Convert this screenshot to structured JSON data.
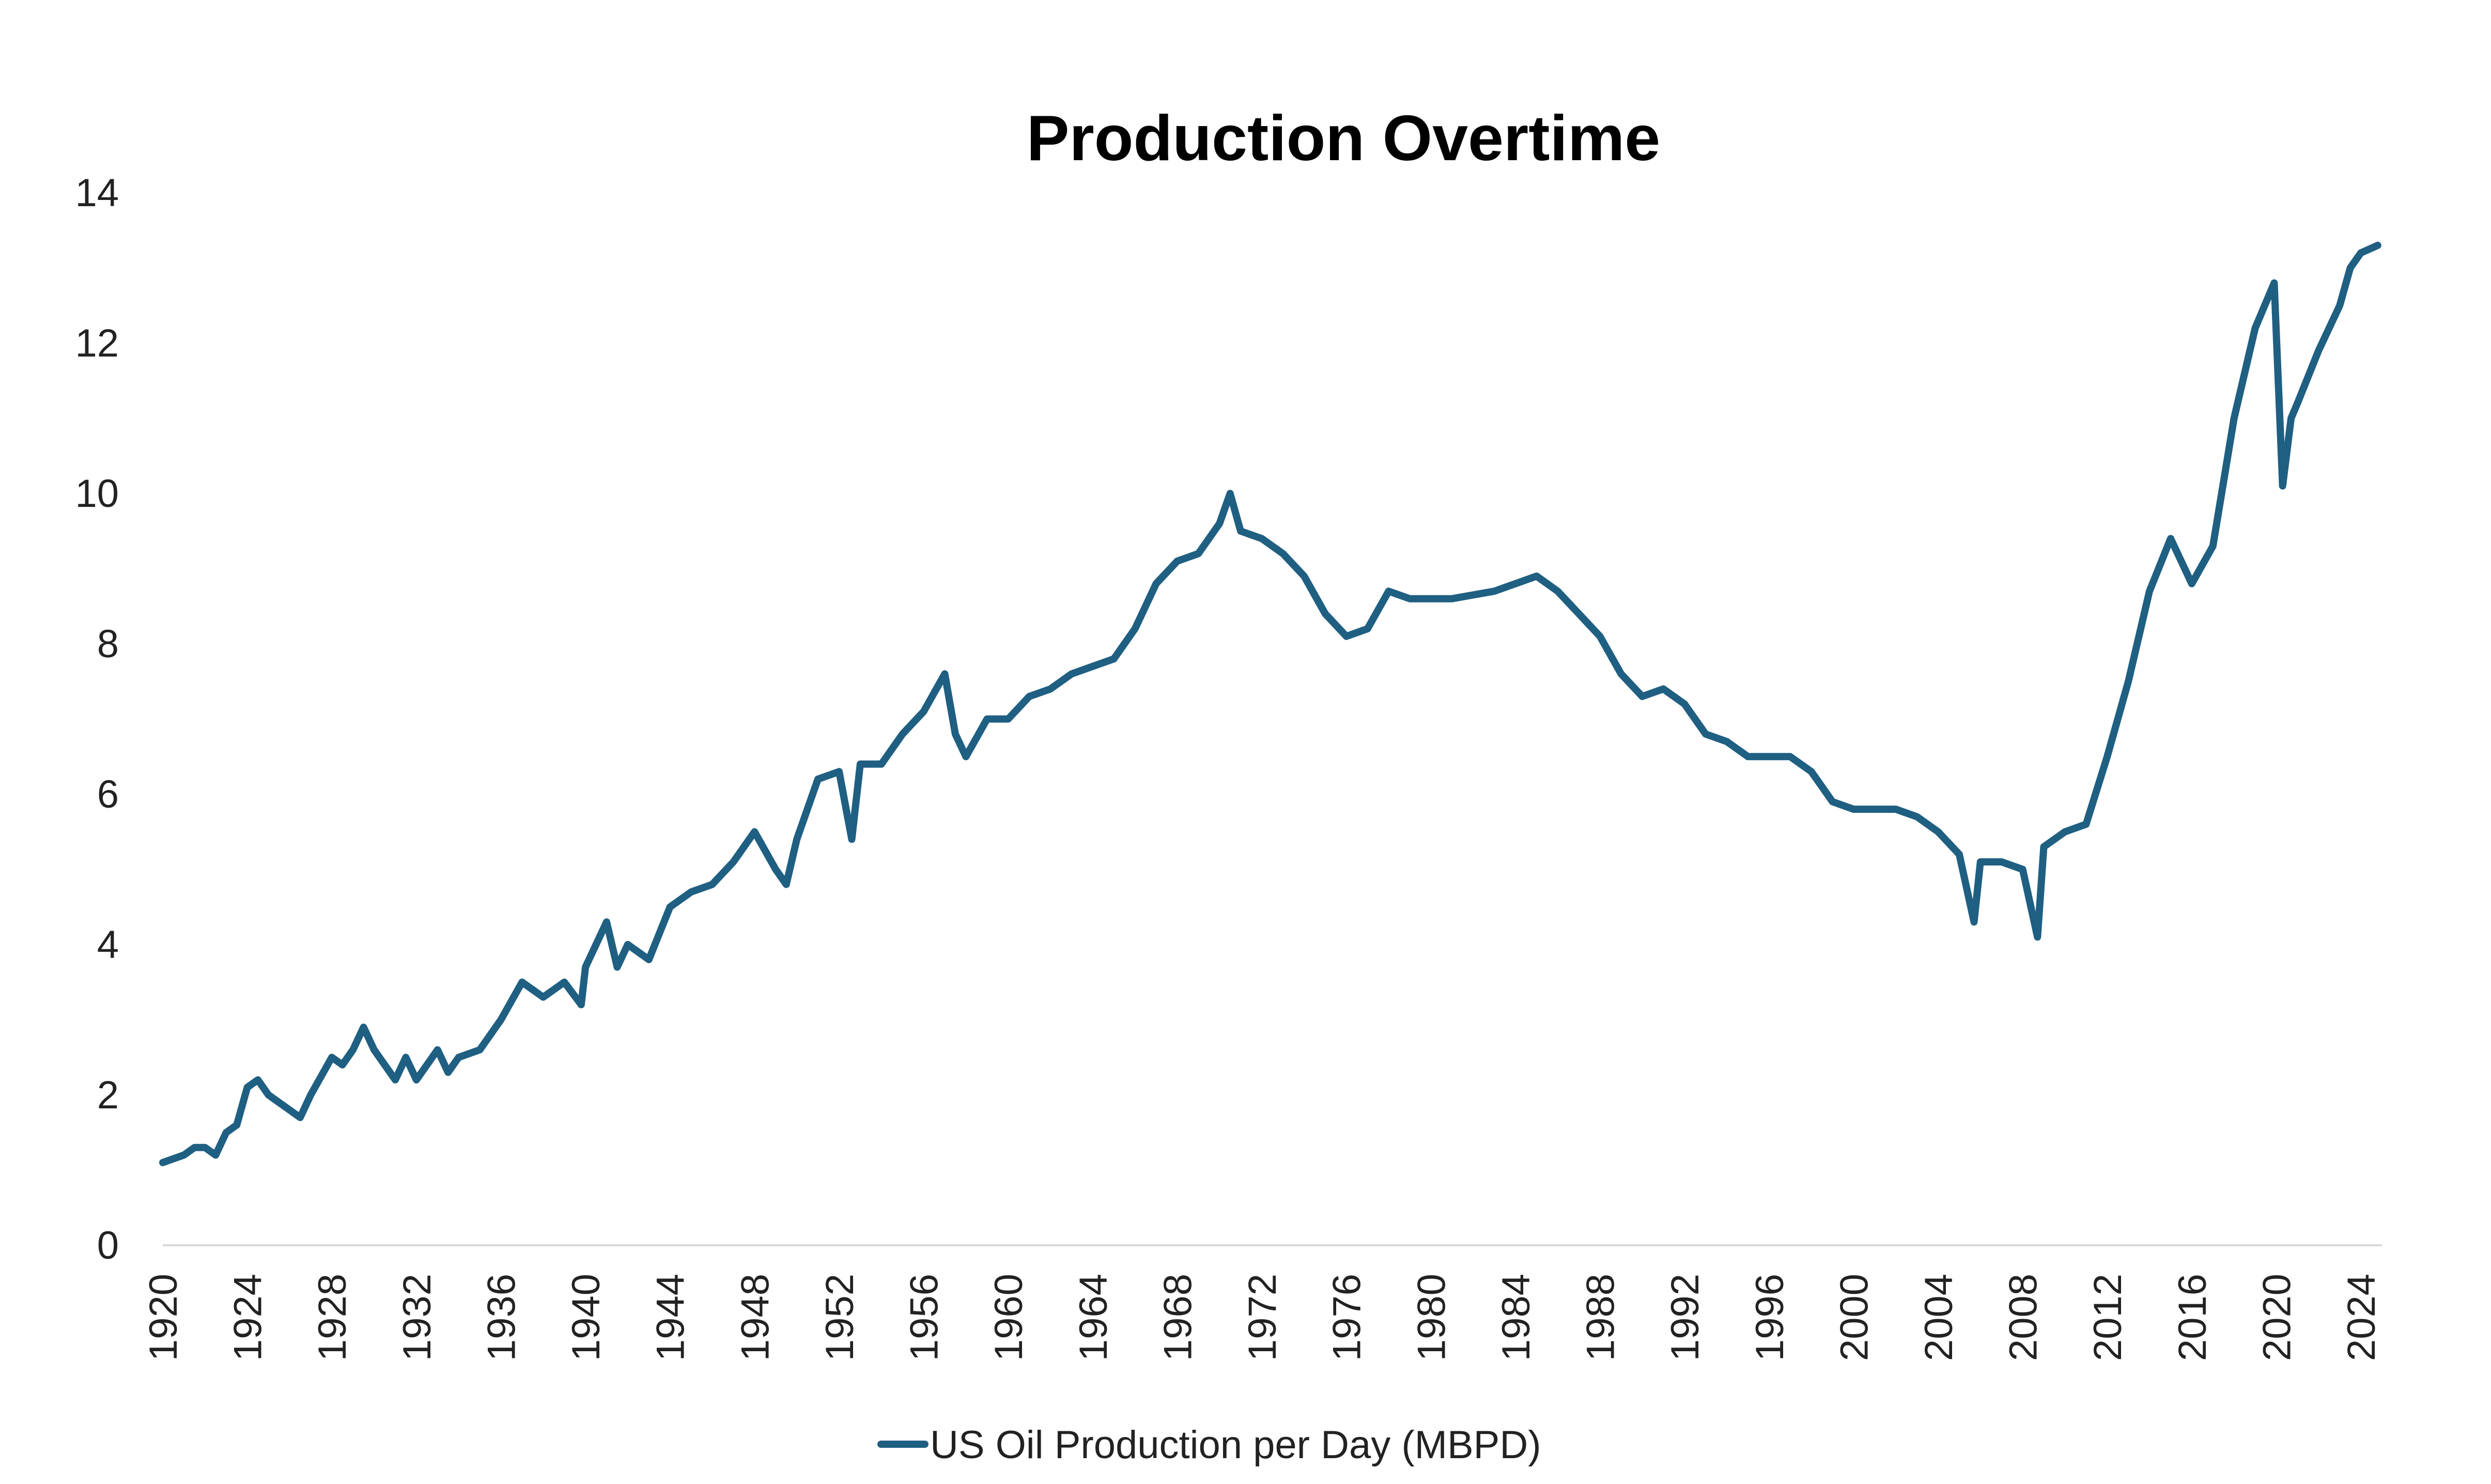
{
  "chart_data": {
    "type": "line",
    "title": "Production Overtime",
    "xlabel": "",
    "ylabel": "",
    "xlim": [
      1920,
      2025
    ],
    "ylim": [
      0,
      14
    ],
    "yticks": [
      0,
      2,
      4,
      6,
      8,
      10,
      12,
      14
    ],
    "xticks": [
      1920,
      1924,
      1928,
      1932,
      1936,
      1940,
      1944,
      1948,
      1952,
      1956,
      1960,
      1964,
      1968,
      1972,
      1976,
      1980,
      1984,
      1988,
      1992,
      1996,
      2000,
      2004,
      2008,
      2012,
      2016,
      2020,
      2024
    ],
    "grid": false,
    "legend": "bottom",
    "color": "#1f5f82",
    "series": [
      {
        "name": "US Oil Production per Day (MBPD)",
        "x": [
          1920,
          1921,
          1921.5,
          1922,
          1922.5,
          1923,
          1923.5,
          1924,
          1924.5,
          1925,
          1926,
          1926.5,
          1927,
          1928,
          1928.5,
          1929,
          1929.5,
          1930,
          1931,
          1931.5,
          1932,
          1933,
          1933.5,
          1934,
          1935,
          1936,
          1937,
          1938,
          1939,
          1939.8,
          1940,
          1941,
          1941.5,
          1942,
          1943,
          1944,
          1945,
          1946,
          1947,
          1948,
          1949,
          1949.5,
          1950,
          1951,
          1952,
          1952.6,
          1953,
          1954,
          1955,
          1956,
          1957,
          1957.5,
          1958,
          1959,
          1960,
          1961,
          1962,
          1963,
          1964,
          1965,
          1966,
          1967,
          1968,
          1969,
          1970,
          1970.5,
          1971,
          1972,
          1973,
          1974,
          1975,
          1976,
          1977,
          1978,
          1979,
          1980,
          1981,
          1982,
          1983,
          1984,
          1985,
          1986,
          1987,
          1988,
          1989,
          1990,
          1991,
          1992,
          1993,
          1994,
          1995,
          1996,
          1997,
          1998,
          1999,
          2000,
          2001,
          2002,
          2003,
          2004,
          2005,
          2005.7,
          2006,
          2007,
          2008,
          2008.7,
          2009,
          2010,
          2011,
          2012,
          2013,
          2014,
          2015,
          2016,
          2017,
          2018,
          2019,
          2019.9,
          2020.3,
          2020.7,
          2021,
          2022,
          2023,
          2023.5,
          2024,
          2024.8
        ],
        "values": [
          1.1,
          1.2,
          1.3,
          1.3,
          1.2,
          1.5,
          1.6,
          2.1,
          2.2,
          2.0,
          1.8,
          1.7,
          2.0,
          2.5,
          2.4,
          2.6,
          2.9,
          2.6,
          2.2,
          2.5,
          2.2,
          2.6,
          2.3,
          2.5,
          2.6,
          3.0,
          3.5,
          3.3,
          3.5,
          3.2,
          3.7,
          4.3,
          3.7,
          4.0,
          3.8,
          4.5,
          4.7,
          4.8,
          5.1,
          5.5,
          5.0,
          4.8,
          5.4,
          6.2,
          6.3,
          5.4,
          6.4,
          6.4,
          6.8,
          7.1,
          7.6,
          6.8,
          6.5,
          7.0,
          7.0,
          7.3,
          7.4,
          7.6,
          7.7,
          7.8,
          8.2,
          8.8,
          9.1,
          9.2,
          9.6,
          10.0,
          9.5,
          9.4,
          9.2,
          8.9,
          8.4,
          8.1,
          8.2,
          8.7,
          8.6,
          8.6,
          8.6,
          8.65,
          8.7,
          8.8,
          8.9,
          8.7,
          8.4,
          8.1,
          7.6,
          7.3,
          7.4,
          7.2,
          6.8,
          6.7,
          6.5,
          6.5,
          6.5,
          6.3,
          5.9,
          5.8,
          5.8,
          5.8,
          5.7,
          5.5,
          5.2,
          4.3,
          5.1,
          5.1,
          5.0,
          4.1,
          5.3,
          5.5,
          5.6,
          6.5,
          7.5,
          8.7,
          9.4,
          8.8,
          9.3,
          11.0,
          12.2,
          12.8,
          10.1,
          11.0,
          11.2,
          11.9,
          12.5,
          13.0,
          13.2,
          13.3
        ]
      }
    ]
  }
}
